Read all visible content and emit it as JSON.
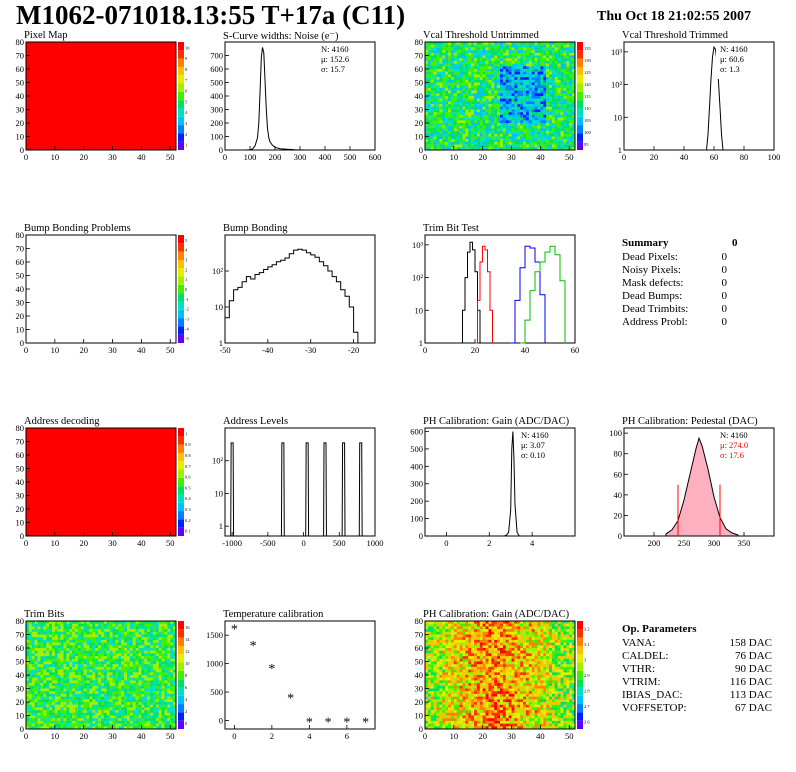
{
  "header": {
    "title": "M1062-071018.13:55 T+17a (C11)",
    "date": "Thu Oct 18 21:02:55 2007"
  },
  "colors": {
    "red": "#ff0000",
    "green": "#00c000",
    "blue": "#0000ff",
    "pink": "#ffb0c0"
  },
  "panels": [
    {
      "title": "Pixel Map"
    },
    {
      "title": "S-Curve widths: Noise (e⁻)",
      "stats": [
        "N: 4160",
        "μ: 152.6",
        "σ: 15.7"
      ]
    },
    {
      "title": "Vcal Threshold Untrimmed"
    },
    {
      "title": "Vcal Threshold Trimmed",
      "stats": [
        "N: 4160",
        "μ: 60.6",
        "σ: 1.3"
      ]
    },
    {
      "title": "Bump Bonding Problems"
    },
    {
      "title": "Bump Bonding"
    },
    {
      "title": "Trim Bit Test"
    },
    {
      "title": ""
    },
    {
      "title": "Address decoding"
    },
    {
      "title": "Address Levels"
    },
    {
      "title": "PH Calibration: Gain (ADC/DAC)",
      "stats": [
        "N: 4160",
        "μ: 3.07",
        "σ: 0.10"
      ]
    },
    {
      "title": "PH Calibration: Pedestal (DAC)",
      "stats": [
        "N: 4160",
        "μ: 274.0",
        "σ: 17.6"
      ]
    },
    {
      "title": "Trim Bits"
    },
    {
      "title": "Temperature calibration"
    },
    {
      "title": "PH Calibration: Gain (ADC/DAC)"
    },
    {
      "title": ""
    }
  ],
  "summary": {
    "title": "Summary",
    "total": "0",
    "rows": [
      {
        "label": "Dead Pixels:",
        "value": "0"
      },
      {
        "label": "Noisy Pixels:",
        "value": "0"
      },
      {
        "label": "Mask defects:",
        "value": "0"
      },
      {
        "label": "Dead Bumps:",
        "value": "0"
      },
      {
        "label": "Dead Trimbits:",
        "value": "0"
      },
      {
        "label": "Address Probl:",
        "value": "0"
      }
    ]
  },
  "op_params": {
    "title": "Op. Parameters",
    "rows": [
      {
        "label": "VANA:",
        "value": "158 DAC"
      },
      {
        "label": "CALDEL:",
        "value": "76 DAC"
      },
      {
        "label": "VTHR:",
        "value": "90 DAC"
      },
      {
        "label": "VTRIM:",
        "value": "116 DAC"
      },
      {
        "label": "IBIAS_DAC:",
        "value": "113 DAC"
      },
      {
        "label": "VOFFSETOP:",
        "value": "67 DAC"
      }
    ]
  },
  "chart_data": [
    {
      "type": "heatmap",
      "title": "Pixel Map",
      "xlim": [
        0,
        52
      ],
      "ylim": [
        0,
        80
      ],
      "xticks": [
        "0",
        "10",
        "20",
        "30",
        "40",
        "50"
      ],
      "yticks": [
        "0",
        "10",
        "20",
        "30",
        "40",
        "50",
        "60",
        "70",
        "80"
      ],
      "fill": "uniform-red",
      "zlabels": [
        "1",
        "2",
        "3",
        "4",
        "5",
        "6",
        "7",
        "8",
        "9",
        "10"
      ]
    },
    {
      "type": "line",
      "title": "S-Curve widths: Noise (e⁻)",
      "xlim": [
        0,
        600
      ],
      "ylim": [
        0,
        800
      ],
      "xticks": [
        "0",
        "100",
        "200",
        "300",
        "400",
        "500",
        "600"
      ],
      "yticks": [
        "0",
        "100",
        "200",
        "300",
        "400",
        "500",
        "600",
        "700"
      ],
      "x": [
        80,
        100,
        110,
        120,
        130,
        135,
        140,
        145,
        150,
        155,
        160,
        165,
        170,
        175,
        180,
        190,
        200,
        220,
        250,
        280,
        320
      ],
      "y": [
        0,
        2,
        8,
        30,
        90,
        200,
        420,
        680,
        760,
        720,
        520,
        300,
        160,
        90,
        60,
        35,
        20,
        10,
        5,
        2,
        0
      ]
    },
    {
      "type": "heatmap",
      "title": "Vcal Threshold Untrimmed",
      "xlim": [
        0,
        52
      ],
      "ylim": [
        0,
        80
      ],
      "xticks": [
        "0",
        "10",
        "20",
        "30",
        "40",
        "50"
      ],
      "yticks": [
        "0",
        "10",
        "20",
        "30",
        "40",
        "50",
        "60",
        "70",
        "80"
      ],
      "zlabels": [
        "95",
        "100",
        "105",
        "110",
        "115",
        "120",
        "125",
        "130",
        "135"
      ]
    },
    {
      "type": "line",
      "title": "Vcal Threshold Trimmed",
      "logy": true,
      "xlim": [
        0,
        100
      ],
      "ylim": [
        1,
        2000
      ],
      "xticks": [
        "0",
        "20",
        "40",
        "60",
        "80",
        "100"
      ],
      "yticks": [
        "1",
        "10",
        "10²",
        "10³"
      ],
      "x": [
        55,
        56,
        57,
        58,
        59,
        60,
        61,
        62,
        63,
        64,
        65,
        66
      ],
      "y": [
        1,
        3,
        20,
        150,
        700,
        1400,
        1200,
        500,
        120,
        20,
        3,
        1
      ]
    },
    {
      "type": "heatmap",
      "title": "Bump Bonding Problems",
      "xlim": [
        0,
        52
      ],
      "ylim": [
        0,
        80
      ],
      "xticks": [
        "0",
        "10",
        "20",
        "30",
        "40",
        "50"
      ],
      "yticks": [
        "0",
        "10",
        "20",
        "30",
        "40",
        "50",
        "60",
        "70",
        "80"
      ],
      "fill": "empty",
      "zlabels": [
        "-5",
        "-4",
        "-3",
        "-2",
        "-1",
        "0",
        "1",
        "2",
        "3",
        "4",
        "5"
      ]
    },
    {
      "type": "line",
      "title": "Bump Bonding",
      "logy": true,
      "xlim": [
        -50,
        -15
      ],
      "ylim": [
        1,
        1000
      ],
      "xticks": [
        "-50",
        "-40",
        "-30",
        "-20"
      ],
      "yticks": [
        "1",
        "10",
        "10²"
      ],
      "x": [
        -50,
        -49,
        -48,
        -47,
        -46,
        -45,
        -44,
        -43,
        -42,
        -41,
        -40,
        -39,
        -38,
        -37,
        -36,
        -35,
        -34,
        -33,
        -32,
        -31,
        -30,
        -29,
        -28,
        -27,
        -26,
        -25,
        -24,
        -23,
        -22,
        -21,
        -20,
        -19
      ],
      "y": [
        5,
        15,
        30,
        35,
        50,
        70,
        60,
        80,
        90,
        110,
        130,
        150,
        180,
        200,
        230,
        300,
        380,
        400,
        380,
        320,
        280,
        240,
        180,
        140,
        100,
        70,
        50,
        30,
        20,
        10,
        2,
        1
      ]
    },
    {
      "type": "line",
      "title": "Trim Bit Test",
      "logy": true,
      "xlim": [
        0,
        60
      ],
      "ylim": [
        1,
        2000
      ],
      "xticks": [
        "0",
        "20",
        "40",
        "60"
      ],
      "yticks": [
        "1",
        "10",
        "10²",
        "10³"
      ],
      "series": [
        {
          "color": "black",
          "x": [
            14,
            15,
            16,
            17,
            18,
            19,
            20,
            21,
            22
          ],
          "y": [
            1,
            10,
            100,
            600,
            1200,
            700,
            150,
            10,
            1
          ]
        },
        {
          "color": "red",
          "x": [
            20,
            21,
            22,
            23,
            24,
            25,
            26,
            27
          ],
          "y": [
            1,
            20,
            300,
            900,
            700,
            150,
            10,
            1
          ]
        },
        {
          "color": "blue",
          "x": [
            34,
            36,
            38,
            40,
            42,
            44,
            46,
            48
          ],
          "y": [
            1,
            20,
            200,
            900,
            800,
            300,
            30,
            1
          ]
        },
        {
          "color": "green",
          "x": [
            38,
            40,
            42,
            44,
            46,
            48,
            50,
            52,
            54,
            56
          ],
          "y": [
            1,
            5,
            40,
            150,
            300,
            600,
            900,
            500,
            80,
            1
          ]
        }
      ]
    },
    {
      "type": "heatmap",
      "title": "Address decoding",
      "xlim": [
        0,
        52
      ],
      "ylim": [
        0,
        80
      ],
      "xticks": [
        "0",
        "10",
        "20",
        "30",
        "40",
        "50"
      ],
      "yticks": [
        "0",
        "10",
        "20",
        "30",
        "40",
        "50",
        "60",
        "70",
        "80"
      ],
      "fill": "uniform-red",
      "zlabels": [
        "0.1",
        "0.2",
        "0.3",
        "0.4",
        "0.5",
        "0.6",
        "0.7",
        "0.8",
        "0.9",
        "1"
      ]
    },
    {
      "type": "line",
      "title": "Address Levels",
      "logy": true,
      "xlim": [
        -1100,
        1000
      ],
      "ylim": [
        0.5,
        1000
      ],
      "xticks": [
        "-1000",
        "-500",
        "0",
        "500",
        "1000"
      ],
      "yticks": [
        "1",
        "10",
        "10²"
      ],
      "peaks": [
        -1000,
        -290,
        50,
        300,
        560,
        800
      ],
      "peak_height": 350
    },
    {
      "type": "line",
      "title": "PH Calibration: Gain (ADC/DAC)",
      "xlim": [
        -1,
        6
      ],
      "ylim": [
        0,
        620
      ],
      "xticks": [
        "0",
        "2",
        "4"
      ],
      "yticks": [
        "0",
        "100",
        "200",
        "300",
        "400",
        "500",
        "600"
      ],
      "x": [
        2.7,
        2.8,
        2.9,
        3.0,
        3.05,
        3.1,
        3.15,
        3.2,
        3.3,
        3.4
      ],
      "y": [
        0,
        5,
        20,
        150,
        500,
        600,
        450,
        180,
        20,
        0
      ]
    },
    {
      "type": "area",
      "title": "PH Calibration: Pedestal (DAC)",
      "xlim": [
        150,
        400
      ],
      "ylim": [
        0,
        105
      ],
      "xticks": [
        "200",
        "250",
        "300",
        "350"
      ],
      "yticks": [
        "0",
        "20",
        "40",
        "60",
        "80",
        "100"
      ],
      "x": [
        220,
        230,
        240,
        250,
        260,
        270,
        275,
        280,
        290,
        300,
        310,
        320,
        330,
        340
      ],
      "y": [
        2,
        6,
        15,
        35,
        60,
        85,
        95,
        88,
        65,
        38,
        18,
        7,
        3,
        1
      ],
      "markers": [
        240,
        310
      ]
    },
    {
      "type": "heatmap",
      "title": "Trim Bits",
      "xlim": [
        0,
        52
      ],
      "ylim": [
        0,
        80
      ],
      "xticks": [
        "0",
        "10",
        "20",
        "30",
        "40",
        "50"
      ],
      "yticks": [
        "0",
        "10",
        "20",
        "30",
        "40",
        "50",
        "60",
        "70",
        "80"
      ],
      "zlabels": [
        "0",
        "2",
        "4",
        "6",
        "8",
        "10",
        "12",
        "14",
        "16"
      ]
    },
    {
      "type": "scatter",
      "title": "Temperature calibration",
      "xlim": [
        -0.5,
        7.5
      ],
      "ylim": [
        -150,
        1750
      ],
      "xticks": [
        "0",
        "2",
        "4",
        "6"
      ],
      "yticks": [
        "0",
        "500",
        "1000",
        "1500"
      ],
      "x": [
        0,
        1,
        2,
        3,
        4,
        5,
        6,
        7
      ],
      "y": [
        1620,
        1330,
        920,
        400,
        -20,
        -20,
        -20,
        -20
      ]
    },
    {
      "type": "heatmap",
      "title": "PH Calibration: Gain (ADC/DAC)",
      "xlim": [
        0,
        52
      ],
      "ylim": [
        0,
        80
      ],
      "xticks": [
        "0",
        "10",
        "20",
        "30",
        "40",
        "50"
      ],
      "yticks": [
        "0",
        "10",
        "20",
        "30",
        "40",
        "50",
        "60",
        "70",
        "80"
      ],
      "zlabels": [
        "2.6",
        "2.7",
        "2.8",
        "2.9",
        "3",
        "3.1",
        "3.2"
      ]
    }
  ]
}
